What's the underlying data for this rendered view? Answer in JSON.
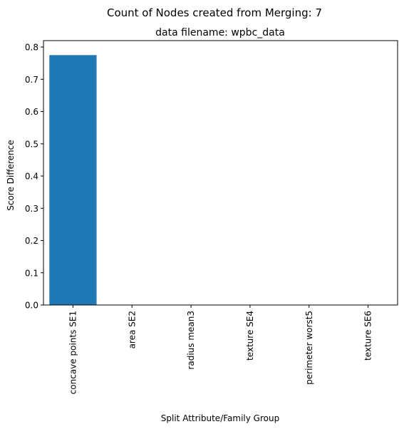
{
  "chart_data": {
    "type": "bar",
    "suptitle": "Count of Nodes created from Merging: 7",
    "title": "data filename: wpbc_data",
    "xlabel": "Split Attribute/Family Group",
    "ylabel": "Score Difference",
    "categories": [
      "concave points SE1",
      "area SE2",
      "radius mean3",
      "texture SE4",
      "perimeter worst5",
      "texture SE6"
    ],
    "values": [
      0.775,
      0,
      0,
      0,
      0,
      0
    ],
    "ylim": [
      0,
      0.82
    ],
    "yticks": [
      "0.0",
      "0.1",
      "0.2",
      "0.3",
      "0.4",
      "0.5",
      "0.6",
      "0.7",
      "0.8"
    ],
    "bar_color": "#1f77b4",
    "grid": false,
    "legend": "none"
  }
}
